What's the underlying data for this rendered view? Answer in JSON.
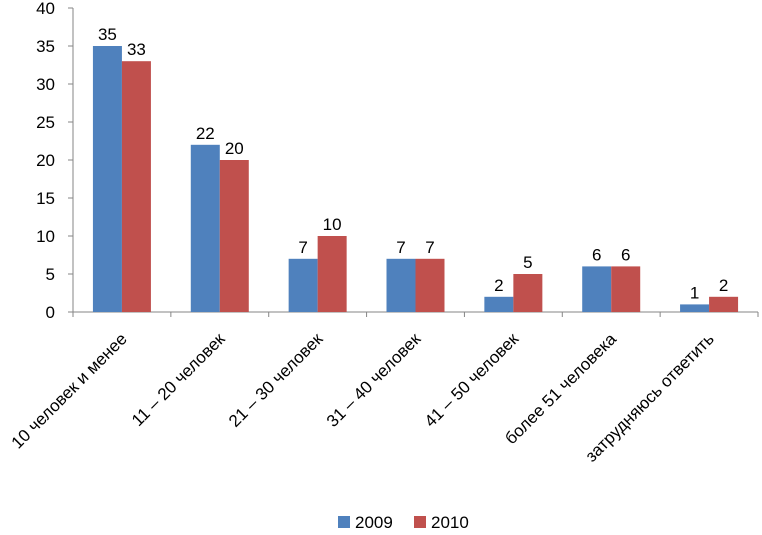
{
  "chart_data": {
    "type": "bar",
    "title": "",
    "xlabel": "",
    "ylabel": "",
    "ylim": [
      0,
      40
    ],
    "yticks": [
      0,
      5,
      10,
      15,
      20,
      25,
      30,
      35,
      40
    ],
    "grid": false,
    "legend_position": "bottom",
    "categories": [
      "10 человек и менее",
      "11 – 20 человек",
      "21 – 30 человек",
      "31 – 40 человек",
      "41 – 50 человек",
      "более 51 человека",
      "затрудняюсь ответить"
    ],
    "series": [
      {
        "name": "2009",
        "color": "#4F81BD",
        "values": [
          35,
          22,
          7,
          7,
          2,
          6,
          1
        ]
      },
      {
        "name": "2010",
        "color": "#C0504D",
        "values": [
          33,
          20,
          10,
          7,
          5,
          6,
          2
        ]
      }
    ]
  }
}
